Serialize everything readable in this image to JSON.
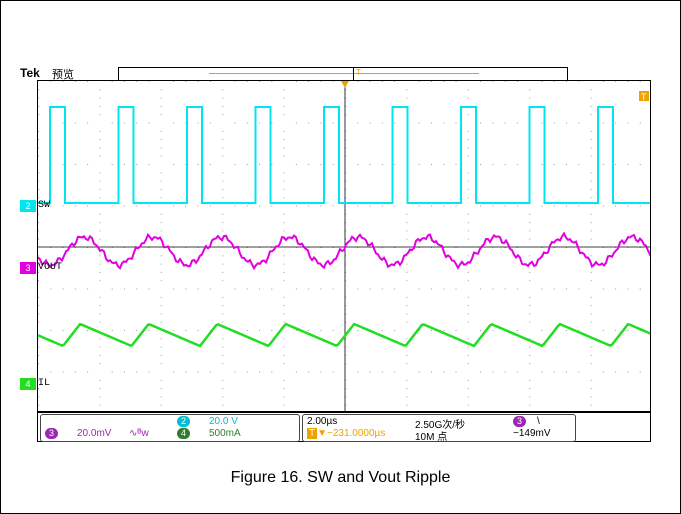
{
  "header": {
    "brand": "Tek",
    "mode": "预览",
    "trigger_marker": "T"
  },
  "channels": {
    "sw": {
      "number": "2",
      "label": "SW",
      "color": "#00e6f0"
    },
    "vout": {
      "number": "3",
      "label": "VOUT",
      "color": "#e000e0"
    },
    "il": {
      "number": "4",
      "label": "IL",
      "color": "#22dd22"
    }
  },
  "status": {
    "ch2_scale": "20.0 V",
    "ch3_scale": "20.0mV",
    "ch3_bw": "∿ᴮw",
    "ch4_scale": "500mA",
    "timebase": "2.00µs",
    "trigger_pos": "▼−231.0000µs",
    "sample_rate": "2.50G次/秒",
    "record_length": "10M 点",
    "trig_source": "3",
    "trig_slope": "\\",
    "trig_level": "−149mV"
  },
  "caption": "Figure 16. SW and Vout Ripple"
}
